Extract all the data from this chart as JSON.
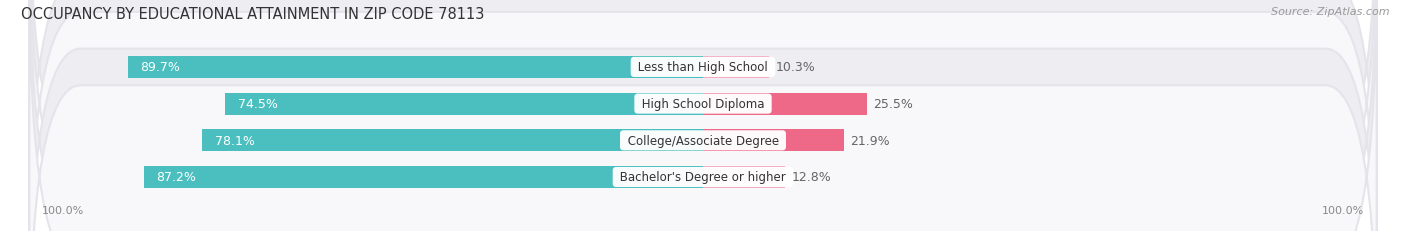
{
  "title": "OCCUPANCY BY EDUCATIONAL ATTAINMENT IN ZIP CODE 78113",
  "source": "Source: ZipAtlas.com",
  "categories": [
    "Less than High School",
    "High School Diploma",
    "College/Associate Degree",
    "Bachelor's Degree or higher"
  ],
  "owner_pct": [
    89.7,
    74.5,
    78.1,
    87.2
  ],
  "renter_pct": [
    10.3,
    25.5,
    21.9,
    12.8
  ],
  "owner_color": "#4BBFBF",
  "renter_colors": [
    "#F5AABF",
    "#EE6888",
    "#EE6888",
    "#F5AABF"
  ],
  "row_bg_colors": [
    "#EDEDF2",
    "#F8F8FB"
  ],
  "outer_bg": "#E4E4EA",
  "label_color_owner": "#FFFFFF",
  "label_color_renter": "#666666",
  "legend_owner_color": "#4BBFBF",
  "legend_renter_color": "#EE7A9A",
  "axis_label": "100.0%",
  "title_fontsize": 10.5,
  "source_fontsize": 8,
  "bar_label_fontsize": 9,
  "category_fontsize": 8.5,
  "legend_fontsize": 9,
  "axis_fontsize": 8
}
